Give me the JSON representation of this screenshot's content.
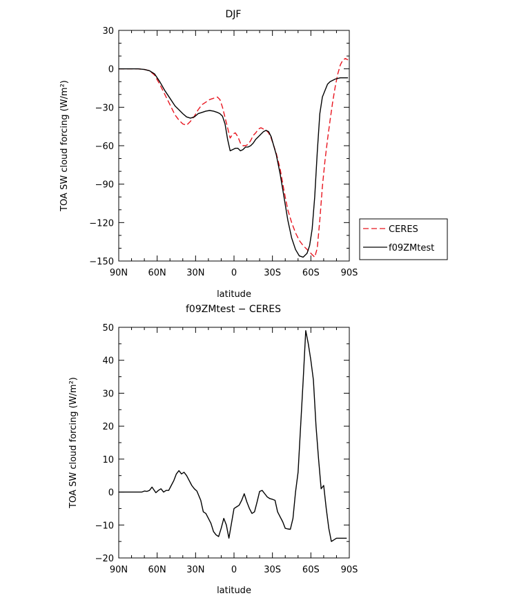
{
  "chart_data": [
    {
      "type": "line",
      "title": "DJF",
      "xlabel": "latitude",
      "ylabel": "TOA SW cloud forcing (W/m²)",
      "xlim": [
        90,
        -90
      ],
      "ylim": [
        -150,
        30
      ],
      "xticks": [
        90,
        60,
        30,
        0,
        -30,
        -60,
        -90
      ],
      "xtick_labels": [
        "90N",
        "60N",
        "30N",
        "0",
        "30S",
        "60S",
        "90S"
      ],
      "yticks": [
        30,
        0,
        -30,
        -60,
        -90,
        -120,
        -150
      ],
      "ytick_labels": [
        "30",
        "0",
        "−30",
        "−60",
        "−90",
        "−120",
        "−150"
      ],
      "legend": "right",
      "series": [
        {
          "name": "CERES",
          "color": "#e8141e",
          "dash": "dashed",
          "x": [
            90,
            85,
            80,
            75,
            70,
            66,
            62,
            58,
            54,
            50,
            46,
            43,
            40,
            37,
            34,
            31,
            28,
            25,
            22,
            19,
            16,
            13,
            11,
            9,
            7,
            5,
            3,
            1,
            -1,
            -3,
            -5,
            -7,
            -9,
            -11,
            -13,
            -15,
            -17,
            -19,
            -21,
            -23,
            -25,
            -27,
            -29,
            -31,
            -33,
            -36,
            -39,
            -42,
            -45,
            -48,
            -51,
            -54,
            -57,
            -59,
            -61,
            -63,
            -65,
            -67,
            -69,
            -71,
            -73,
            -75,
            -77,
            -79,
            -81,
            -83,
            -85,
            -87,
            -89
          ],
          "values": [
            0,
            0,
            0,
            0,
            -0.5,
            -1.5,
            -5,
            -12,
            -20,
            -28,
            -36,
            -40,
            -43,
            -44,
            -41,
            -37,
            -32,
            -28,
            -26,
            -24,
            -23,
            -22,
            -24,
            -30,
            -38,
            -46,
            -54,
            -51,
            -50,
            -53,
            -58,
            -60,
            -60,
            -59,
            -56,
            -52,
            -50,
            -47,
            -46,
            -47,
            -48,
            -50,
            -54,
            -60,
            -66,
            -78,
            -95,
            -110,
            -120,
            -128,
            -134,
            -138,
            -141,
            -143,
            -145,
            -147,
            -140,
            -118,
            -92,
            -72,
            -55,
            -40,
            -26,
            -14,
            -4,
            3,
            7,
            8,
            7
          ]
        },
        {
          "name": "f09ZMtest",
          "color": "#000000",
          "dash": "solid",
          "x": [
            90,
            85,
            80,
            75,
            70,
            66,
            62,
            58,
            54,
            50,
            46,
            43,
            40,
            37,
            34,
            31,
            28,
            25,
            22,
            19,
            16,
            13,
            11,
            9,
            7,
            5,
            3,
            1,
            -1,
            -3,
            -5,
            -7,
            -9,
            -11,
            -13,
            -15,
            -17,
            -19,
            -21,
            -23,
            -25,
            -27,
            -29,
            -31,
            -33,
            -36,
            -39,
            -42,
            -45,
            -48,
            -51,
            -54,
            -57,
            -59,
            -61,
            -63,
            -65,
            -67,
            -69,
            -71,
            -73,
            -75,
            -77,
            -79,
            -81,
            -83,
            -85,
            -87,
            -89
          ],
          "values": [
            0,
            0,
            0,
            0,
            -0.5,
            -1.5,
            -4,
            -10,
            -17,
            -23,
            -29,
            -32,
            -35,
            -37.5,
            -38.5,
            -37.5,
            -35,
            -34,
            -33,
            -32.5,
            -33,
            -34,
            -35,
            -37,
            -43,
            -55,
            -64,
            -63,
            -62,
            -62,
            -64,
            -63,
            -61,
            -61,
            -60,
            -58,
            -55,
            -53,
            -51,
            -49,
            -48,
            -49,
            -53,
            -60,
            -67,
            -82,
            -100,
            -118,
            -132,
            -141,
            -146,
            -147,
            -144,
            -138,
            -125,
            -100,
            -65,
            -35,
            -22,
            -17,
            -12,
            -10,
            -9,
            -8,
            -7.5,
            -7,
            -7,
            -7,
            -7
          ]
        }
      ]
    },
    {
      "type": "line",
      "title": "f09ZMtest − CERES",
      "xlabel": "latitude",
      "ylabel": "TOA SW cloud forcing (W/m²)",
      "xlim": [
        90,
        -90
      ],
      "ylim": [
        -20,
        50
      ],
      "xticks": [
        90,
        60,
        30,
        0,
        -30,
        -60,
        -90
      ],
      "xtick_labels": [
        "90N",
        "60N",
        "30N",
        "0",
        "30S",
        "60S",
        "90S"
      ],
      "yticks": [
        50,
        40,
        30,
        20,
        10,
        0,
        -10,
        -20
      ],
      "ytick_labels": [
        "50",
        "40",
        "30",
        "20",
        "10",
        "0",
        "−10",
        "−20"
      ],
      "series": [
        {
          "color": "#000000",
          "dash": "solid",
          "x": [
            90,
            85,
            80,
            75,
            72,
            70,
            68,
            66,
            64,
            61,
            59,
            57,
            55,
            53,
            51,
            49,
            47,
            45,
            43,
            41,
            39,
            37,
            35,
            33,
            31,
            29,
            26,
            24,
            22,
            20,
            18,
            16,
            14,
            12,
            10,
            8,
            6,
            4,
            2,
            0,
            -2,
            -4,
            -6,
            -8,
            -10,
            -12,
            -14,
            -16,
            -18,
            -20,
            -22,
            -24,
            -26,
            -28,
            -30,
            -32,
            -34,
            -36,
            -38,
            -40,
            -42,
            -44,
            -46,
            -48,
            -50,
            -52,
            -54,
            -56,
            -58,
            -60,
            -62,
            -64,
            -66,
            -68,
            -70,
            -72,
            -74,
            -76,
            -78,
            -80,
            -82,
            -84,
            -86,
            -88
          ],
          "values": [
            0,
            0,
            0,
            0,
            0,
            0.3,
            0.2,
            0.5,
            1.5,
            -0.2,
            0.5,
            1,
            0,
            0.5,
            0.5,
            2,
            3.5,
            5.5,
            6.5,
            5.5,
            6,
            5,
            3.5,
            2,
            1,
            0.3,
            -2.5,
            -6,
            -6.5,
            -8,
            -9.5,
            -12,
            -13,
            -13.5,
            -11,
            -8,
            -10,
            -14,
            -9.5,
            -5,
            -4.5,
            -4,
            -2.5,
            -0.5,
            -3,
            -5,
            -6.5,
            -6,
            -3,
            0.2,
            0.5,
            -0.5,
            -1.5,
            -2,
            -2.2,
            -2.5,
            -6,
            -7.5,
            -9,
            -11,
            -11.2,
            -11.3,
            -8,
            0,
            6,
            20,
            34,
            49,
            45,
            40,
            34,
            20,
            10,
            1,
            2,
            -5,
            -11,
            -15,
            -14.5,
            -14,
            -14,
            -14,
            -14,
            -14
          ]
        }
      ]
    }
  ]
}
